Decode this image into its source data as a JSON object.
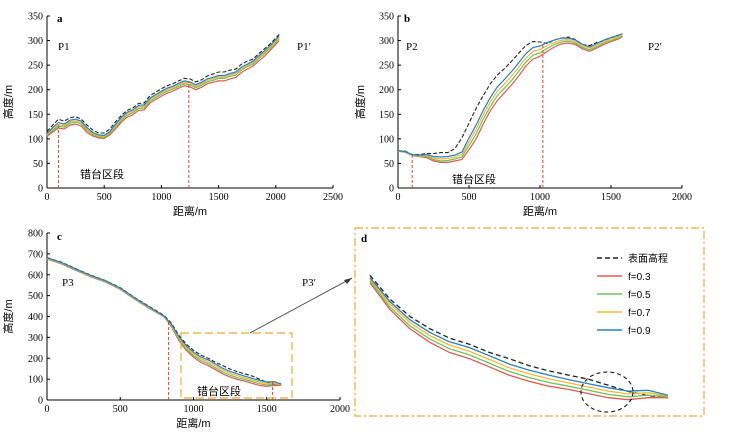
{
  "chart_data": [
    {
      "panel": "a",
      "type": "line",
      "xlabel": "距离/m",
      "ylabel": "高度/m",
      "xlim": [
        0,
        2500
      ],
      "ylim": [
        0,
        350
      ],
      "xticks": [
        0,
        500,
        1000,
        1500,
        2000,
        2500
      ],
      "yticks": [
        0,
        50,
        100,
        150,
        200,
        250,
        300,
        350
      ],
      "profile_start_label": "P1",
      "profile_end_label": "P1′",
      "zone_label": "错台区段",
      "marker_x": [
        100,
        1240
      ],
      "x": [
        0,
        50,
        100,
        150,
        200,
        250,
        300,
        350,
        400,
        450,
        500,
        550,
        600,
        650,
        700,
        750,
        800,
        850,
        900,
        950,
        1000,
        1050,
        1100,
        1150,
        1200,
        1250,
        1300,
        1350,
        1400,
        1450,
        1500,
        1550,
        1600,
        1650,
        1700,
        1750,
        1800,
        1850,
        1900,
        1950,
        2000,
        2030
      ],
      "series": [
        {
          "name": "表面高程",
          "values": [
            115,
            128,
            140,
            136,
            143,
            145,
            140,
            128,
            118,
            112,
            112,
            120,
            135,
            148,
            158,
            163,
            172,
            173,
            188,
            195,
            202,
            208,
            212,
            218,
            223,
            222,
            216,
            220,
            228,
            232,
            236,
            236,
            240,
            242,
            252,
            258,
            262,
            273,
            283,
            293,
            305,
            313
          ]
        },
        {
          "name": "f=0.3",
          "values": [
            105,
            114,
            122,
            120,
            128,
            130,
            126,
            113,
            106,
            102,
            101,
            108,
            120,
            134,
            144,
            149,
            158,
            159,
            173,
            180,
            187,
            193,
            197,
            203,
            208,
            206,
            200,
            205,
            212,
            215,
            218,
            218,
            222,
            225,
            235,
            242,
            248,
            258,
            268,
            280,
            292,
            300
          ]
        },
        {
          "name": "f=0.5",
          "values": [
            107,
            117,
            126,
            124,
            132,
            134,
            130,
            117,
            109,
            104,
            103,
            111,
            124,
            138,
            148,
            153,
            162,
            163,
            177,
            184,
            191,
            197,
            201,
            207,
            212,
            210,
            204,
            209,
            216,
            219,
            223,
            223,
            227,
            230,
            240,
            247,
            252,
            263,
            273,
            284,
            296,
            304
          ]
        },
        {
          "name": "f=0.7",
          "values": [
            109,
            120,
            129,
            127,
            135,
            137,
            133,
            120,
            111,
            106,
            105,
            113,
            127,
            141,
            151,
            156,
            165,
            166,
            180,
            187,
            194,
            200,
            204,
            210,
            215,
            213,
            207,
            212,
            219,
            222,
            226,
            226,
            230,
            233,
            243,
            249,
            255,
            266,
            276,
            287,
            299,
            307
          ]
        },
        {
          "name": "f=0.9",
          "values": [
            111,
            123,
            133,
            130,
            138,
            140,
            136,
            123,
            113,
            108,
            107,
            115,
            130,
            144,
            154,
            159,
            168,
            169,
            183,
            190,
            197,
            203,
            207,
            213,
            218,
            216,
            210,
            215,
            222,
            225,
            229,
            229,
            233,
            236,
            246,
            252,
            258,
            269,
            279,
            290,
            302,
            310
          ]
        }
      ]
    },
    {
      "panel": "b",
      "type": "line",
      "xlabel": "距离/m",
      "ylabel": "高度/m",
      "xlim": [
        0,
        2000
      ],
      "ylim": [
        0,
        350
      ],
      "xticks": [
        0,
        500,
        1000,
        1500,
        2000
      ],
      "yticks": [
        0,
        50,
        100,
        150,
        200,
        250,
        300,
        350
      ],
      "profile_start_label": "P2",
      "profile_end_label": "P2′",
      "zone_label": "错台区段",
      "marker_x": [
        100,
        1020
      ],
      "x": [
        0,
        50,
        100,
        150,
        200,
        250,
        300,
        350,
        400,
        450,
        500,
        550,
        600,
        650,
        700,
        750,
        800,
        850,
        900,
        950,
        1000,
        1050,
        1100,
        1150,
        1200,
        1250,
        1300,
        1350,
        1400,
        1450,
        1500,
        1550,
        1580
      ],
      "series": [
        {
          "name": "表面高程",
          "values": [
            76,
            75,
            68,
            68,
            70,
            70,
            72,
            72,
            80,
            102,
            132,
            162,
            188,
            212,
            230,
            243,
            258,
            274,
            290,
            298,
            297,
            294,
            301,
            305,
            307,
            302,
            292,
            290,
            296,
            300,
            306,
            310,
            312
          ]
        },
        {
          "name": "f=0.3",
          "values": [
            75,
            73,
            66,
            64,
            62,
            55,
            52,
            52,
            55,
            58,
            78,
            100,
            130,
            157,
            178,
            194,
            210,
            228,
            248,
            262,
            268,
            278,
            287,
            293,
            295,
            292,
            283,
            278,
            285,
            292,
            298,
            303,
            308
          ]
        },
        {
          "name": "f=0.5",
          "values": [
            75,
            73,
            67,
            65,
            64,
            58,
            55,
            56,
            59,
            63,
            86,
            110,
            140,
            166,
            188,
            203,
            219,
            237,
            256,
            270,
            275,
            284,
            292,
            297,
            299,
            295,
            286,
            281,
            288,
            295,
            300,
            305,
            310
          ]
        },
        {
          "name": "f=0.7",
          "values": [
            75,
            74,
            67,
            66,
            66,
            61,
            59,
            60,
            63,
            68,
            94,
            119,
            149,
            175,
            197,
            212,
            228,
            246,
            264,
            278,
            282,
            290,
            296,
            301,
            302,
            298,
            289,
            284,
            291,
            298,
            303,
            308,
            312
          ]
        },
        {
          "name": "f=0.9",
          "values": [
            76,
            74,
            68,
            67,
            68,
            64,
            63,
            64,
            67,
            73,
            102,
            128,
            158,
            184,
            206,
            221,
            237,
            255,
            273,
            286,
            289,
            296,
            301,
            305,
            305,
            301,
            292,
            287,
            294,
            301,
            306,
            311,
            314
          ]
        }
      ]
    },
    {
      "panel": "c",
      "type": "line",
      "xlabel": "距离/m",
      "ylabel": "高度/m",
      "xlim": [
        0,
        2000
      ],
      "ylim": [
        0,
        800
      ],
      "xticks": [
        0,
        500,
        1000,
        1500,
        2000
      ],
      "yticks": [
        0,
        100,
        200,
        300,
        400,
        500,
        600,
        700,
        800
      ],
      "profile_start_label": "P3",
      "profile_end_label": "P3′",
      "zone_label": "错台区段",
      "marker_x": [
        830,
        1540
      ],
      "x": [
        0,
        100,
        200,
        300,
        400,
        500,
        600,
        700,
        800,
        850,
        900,
        950,
        1000,
        1050,
        1100,
        1150,
        1200,
        1250,
        1300,
        1350,
        1400,
        1450,
        1500,
        1550,
        1600
      ],
      "series": [
        {
          "name": "表面高程",
          "values": [
            682,
            660,
            628,
            598,
            572,
            538,
            490,
            447,
            405,
            368,
            310,
            268,
            238,
            215,
            200,
            180,
            165,
            148,
            135,
            125,
            115,
            100,
            85,
            75,
            70
          ]
        },
        {
          "name": "f=0.3",
          "values": [
            675,
            652,
            620,
            590,
            565,
            530,
            482,
            438,
            398,
            350,
            285,
            238,
            205,
            180,
            165,
            145,
            125,
            110,
            98,
            90,
            80,
            70,
            65,
            70,
            70
          ]
        },
        {
          "name": "f=0.5",
          "values": [
            677,
            654,
            622,
            592,
            567,
            532,
            484,
            440,
            400,
            354,
            291,
            245,
            213,
            189,
            174,
            154,
            134,
            119,
            107,
            98,
            88,
            78,
            72,
            76,
            72
          ]
        },
        {
          "name": "f=0.7",
          "values": [
            679,
            656,
            624,
            594,
            569,
            534,
            486,
            442,
            401,
            358,
            298,
            253,
            221,
            198,
            183,
            163,
            143,
            128,
            116,
            106,
            96,
            86,
            79,
            82,
            74
          ]
        },
        {
          "name": "f=0.9",
          "values": [
            681,
            658,
            626,
            596,
            571,
            536,
            488,
            444,
            402,
            362,
            304,
            260,
            229,
            206,
            192,
            172,
            152,
            137,
            125,
            114,
            104,
            94,
            86,
            88,
            76
          ]
        }
      ]
    }
  ],
  "panel_labels": {
    "a": "a",
    "b": "b",
    "c": "c",
    "d": "d"
  },
  "legend": {
    "items": [
      {
        "label": "表面高程",
        "color": "#222222",
        "dash": true
      },
      {
        "label": "f=0.3",
        "color": "#e05a4e",
        "dash": false
      },
      {
        "label": "f=0.5",
        "color": "#6cc25a",
        "dash": false
      },
      {
        "label": "f=0.7",
        "color": "#f0b73a",
        "dash": false
      },
      {
        "label": "f=0.9",
        "color": "#2a7fc0",
        "dash": false
      }
    ]
  },
  "colors": {
    "surface": "#222222",
    "f03": "#e05a4e",
    "f05": "#6cc25a",
    "f07": "#f0b73a",
    "f09": "#2a7fc0",
    "marker": "#e0402e",
    "zoom_box": "#f0a830"
  }
}
